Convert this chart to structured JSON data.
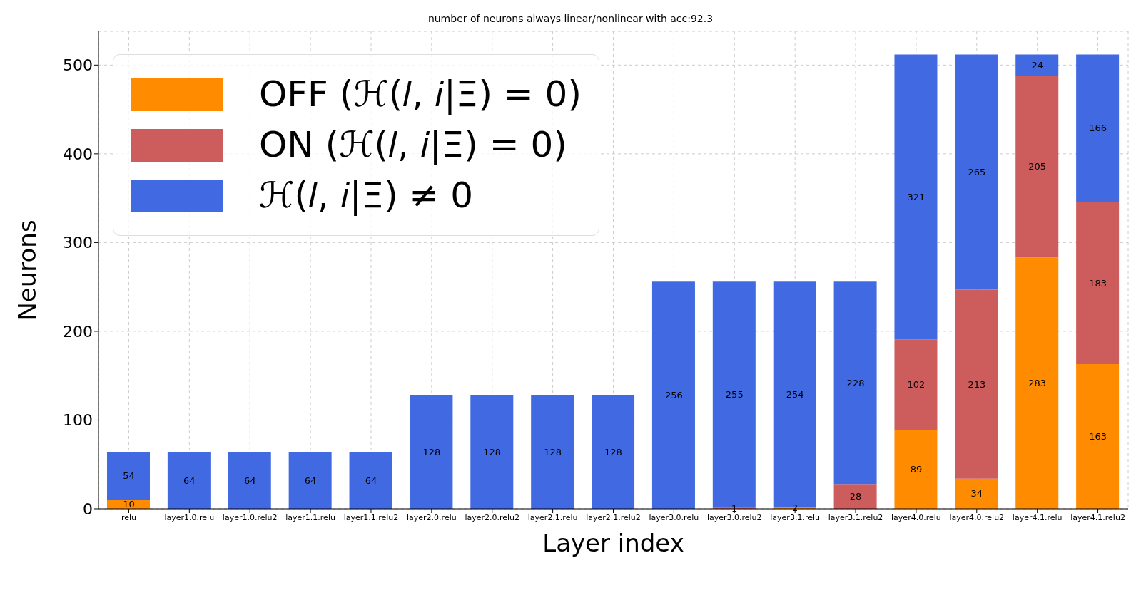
{
  "chart_data": {
    "type": "bar",
    "title": "number of neurons always linear/nonlinear with acc:92.3",
    "xlabel": "Layer index",
    "ylabel": "Neurons",
    "categories": [
      "relu",
      "layer1.0.relu",
      "layer1.0.relu2",
      "layer1.1.relu",
      "layer1.1.relu2",
      "layer2.0.relu",
      "layer2.0.relu2",
      "layer2.1.relu",
      "layer2.1.relu2",
      "layer3.0.relu",
      "layer3.0.relu2",
      "layer3.1.relu",
      "layer3.1.relu2",
      "layer4.0.relu",
      "layer4.0.relu2",
      "layer4.1.relu",
      "layer4.1.relu2"
    ],
    "series": [
      {
        "name": "OFF (ℋ(𝑙, 𝑖|Ξ) = 0)",
        "color": "#ff8c00",
        "values": [
          10,
          0,
          0,
          0,
          0,
          0,
          0,
          0,
          0,
          0,
          0,
          2,
          0,
          89,
          34,
          283,
          163
        ],
        "value_labels": [
          "10",
          null,
          null,
          null,
          null,
          null,
          null,
          null,
          null,
          null,
          null,
          "2",
          null,
          "89",
          "34",
          "283",
          "163"
        ]
      },
      {
        "name": "ON (ℋ(𝑙, 𝑖|Ξ) = 0)",
        "color": "#cd5c5c",
        "values": [
          0,
          0,
          0,
          0,
          0,
          0,
          0,
          0,
          0,
          0,
          1,
          0,
          28,
          102,
          213,
          205,
          183
        ],
        "value_labels": [
          null,
          null,
          null,
          null,
          null,
          null,
          null,
          null,
          null,
          null,
          "1",
          null,
          "28",
          "102",
          "213",
          "205",
          "183"
        ]
      },
      {
        "name": "ℋ(𝑙, 𝑖|Ξ) ≠ 0",
        "color": "#4169e1",
        "values": [
          54,
          64,
          64,
          64,
          64,
          128,
          128,
          128,
          128,
          256,
          255,
          254,
          228,
          321,
          265,
          24,
          166
        ],
        "value_labels": [
          "54",
          "64",
          "64",
          "64",
          "64",
          "128",
          "128",
          "128",
          "128",
          "256",
          "255",
          "254",
          "228",
          "321",
          "265",
          "24",
          "166"
        ]
      }
    ],
    "stacked": true,
    "ylim": [
      0,
      538
    ],
    "yticks": [
      0,
      100,
      200,
      300,
      400,
      500
    ],
    "grid": true,
    "legend": "top left"
  }
}
